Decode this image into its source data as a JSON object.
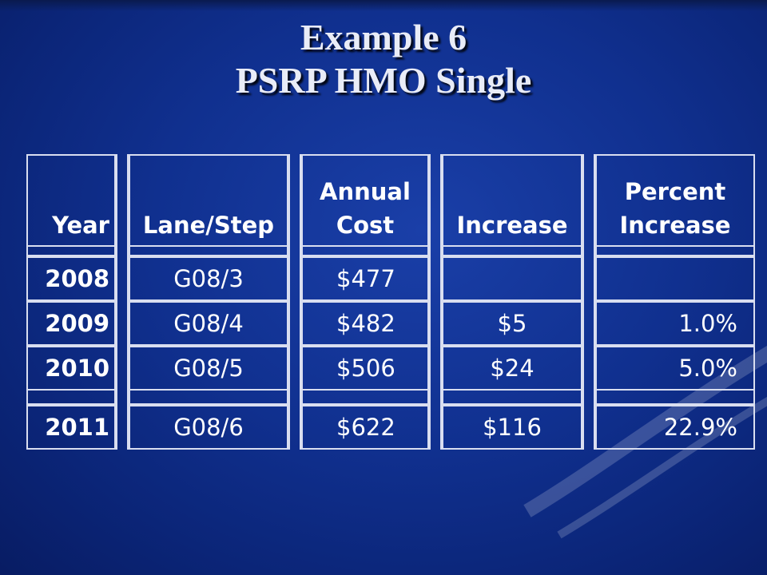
{
  "slide": {
    "title_line1": "Example 6",
    "title_line2": "PSRP HMO Single"
  },
  "table": {
    "headers": {
      "year": "Year",
      "lane_step": "Lane/Step",
      "annual_cost_line1": "Annual",
      "annual_cost_line2": "Cost",
      "increase": "Increase",
      "percent_increase_line1": "Percent",
      "percent_increase_line2": "Increase"
    },
    "rows": [
      {
        "year": "2008",
        "lane_step": "G08/3",
        "annual_cost": "$477",
        "increase": "",
        "percent_increase": ""
      },
      {
        "year": "2009",
        "lane_step": "G08/4",
        "annual_cost": "$482",
        "increase": "$5",
        "percent_increase": "1.0%"
      },
      {
        "year": "2010",
        "lane_step": "G08/5",
        "annual_cost": "$506",
        "increase": "$24",
        "percent_increase": "5.0%"
      },
      {
        "year": "2011",
        "lane_step": "G08/6",
        "annual_cost": "$622",
        "increase": "$116",
        "percent_increase": "22.9%"
      }
    ]
  },
  "colors": {
    "background": "#10308f",
    "title_text": "#e9ecf7",
    "table_text": "#ffffff",
    "table_border": "#d9def0"
  }
}
